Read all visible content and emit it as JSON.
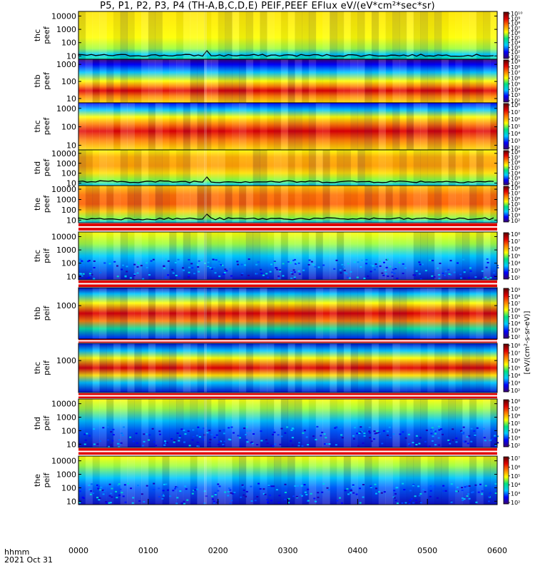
{
  "title": "P5, P1, P2, P3, P4 (TH-A,B,C,D,E) PEIF,PEEF EFlux eV/(eV*cm²*sec*sr)",
  "footer": {
    "tick_unit": "hhmm",
    "date": "2021 Oct 31"
  },
  "chart_data": {
    "type": "heatmap",
    "x_ticks": [
      "0000",
      "0100",
      "0200",
      "0300",
      "0400",
      "0500",
      "0600"
    ],
    "xlim": [
      "0000",
      "0600"
    ],
    "y_scale": "log",
    "colorscale": [
      "#3a0070",
      "#0000ff",
      "#00c8ff",
      "#00e080",
      "#ffff00",
      "#ff8000",
      "#e00000",
      "#5a0000"
    ],
    "colorbar_label": "[eV/(cm²-s-sr-eV)]",
    "panels": [
      {
        "label": [
          "thc",
          "peef"
        ],
        "y_ticks": [
          "10",
          "100",
          "1000",
          "10000"
        ],
        "cbar_ticks": [
          "10¹",
          "10²",
          "10³",
          "10⁴",
          "10⁵",
          "10⁶",
          "10⁷",
          "10⁸",
          "10⁹",
          "10¹⁰"
        ]
      },
      {
        "label": [
          "thb",
          "peef"
        ],
        "y_ticks": [
          "10",
          "100",
          "1000"
        ],
        "cbar_ticks": [
          "10²",
          "10³",
          "10⁴",
          "10⁵",
          "10⁶",
          "10⁷",
          "10⁸",
          "10⁹"
        ]
      },
      {
        "label": [
          "thc",
          "peef"
        ],
        "y_ticks": [
          "10",
          "100",
          "1000"
        ],
        "cbar_ticks": [
          "10²",
          "10³",
          "10⁴",
          "10⁵",
          "10⁶",
          "10⁷",
          "10⁸"
        ]
      },
      {
        "label": [
          "thd",
          "peef"
        ],
        "y_ticks": [
          "10",
          "100",
          "1000",
          "10000"
        ],
        "cbar_ticks": [
          "10²",
          "10³",
          "10⁴",
          "10⁵",
          "10⁶",
          "10⁷",
          "10⁸"
        ]
      },
      {
        "label": [
          "the",
          "peef"
        ],
        "y_ticks": [
          "10",
          "100",
          "1000",
          "10000"
        ],
        "cbar_ticks": [
          "10²",
          "10³",
          "10⁴",
          "10⁵",
          "10⁶",
          "10⁷",
          "10⁸"
        ]
      },
      {
        "label": [
          "thc",
          "peif"
        ],
        "y_ticks": [
          "10",
          "100",
          "1000",
          "10000"
        ],
        "cbar_ticks": [
          "10²",
          "10³",
          "10⁴",
          "10⁵",
          "10⁶",
          "10⁷",
          "10⁸"
        ]
      },
      {
        "label": [
          "thb",
          "peif"
        ],
        "y_ticks": [
          "1000"
        ],
        "cbar_ticks": [
          "10²",
          "10³",
          "10⁴",
          "10⁵",
          "10⁶",
          "10⁷",
          "10⁸",
          "10⁹"
        ]
      },
      {
        "label": [
          "thc",
          "peif"
        ],
        "y_ticks": [
          "1000"
        ],
        "cbar_ticks": [
          "10²",
          "10³",
          "10⁴",
          "10⁵",
          "10⁶",
          "10⁷",
          "10⁸"
        ]
      },
      {
        "label": [
          "thd",
          "peif"
        ],
        "y_ticks": [
          "10",
          "100",
          "1000",
          "10000"
        ],
        "cbar_ticks": [
          "10²",
          "10³",
          "10⁴",
          "10⁵",
          "10⁶",
          "10⁷",
          "10⁸"
        ]
      },
      {
        "label": [
          "the",
          "peif"
        ],
        "y_ticks": [
          "10",
          "100",
          "1000",
          "10000"
        ],
        "cbar_ticks": [
          "10²",
          "10³",
          "10⁴",
          "10⁵",
          "10⁶",
          "10⁷"
        ]
      }
    ]
  }
}
